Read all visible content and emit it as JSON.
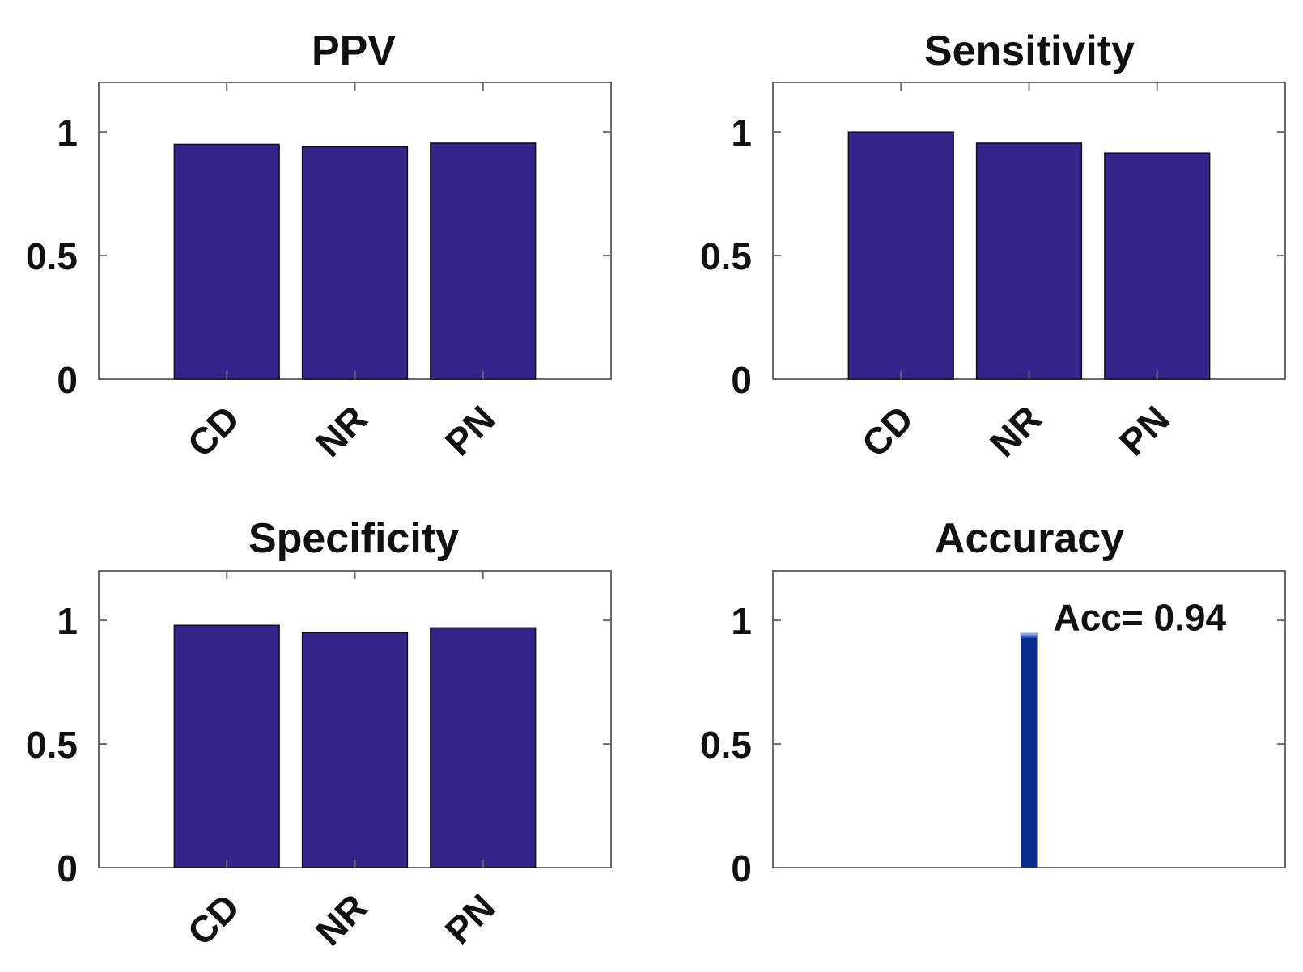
{
  "chart_data": [
    {
      "type": "bar",
      "title": "PPV",
      "categories": [
        "CD",
        "NR",
        "PN"
      ],
      "values": [
        0.95,
        0.94,
        0.955
      ],
      "ylim": [
        0,
        1.2
      ],
      "yticks": [
        "0",
        "0.5",
        "1"
      ],
      "xlabel": "",
      "ylabel": "",
      "color": "#34248a"
    },
    {
      "type": "bar",
      "title": "Sensitivity",
      "categories": [
        "CD",
        "NR",
        "PN"
      ],
      "values": [
        1.0,
        0.955,
        0.915
      ],
      "ylim": [
        0,
        1.2
      ],
      "yticks": [
        "0",
        "0.5",
        "1"
      ],
      "xlabel": "",
      "ylabel": "",
      "color": "#34248a"
    },
    {
      "type": "bar",
      "title": "Specificity",
      "categories": [
        "CD",
        "NR",
        "PN"
      ],
      "values": [
        0.98,
        0.95,
        0.97
      ],
      "ylim": [
        0,
        1.2
      ],
      "yticks": [
        "0",
        "0.5",
        "1"
      ],
      "xlabel": "",
      "ylabel": "",
      "color": "#34248a"
    },
    {
      "type": "bar",
      "title": "Accuracy",
      "categories": [
        ""
      ],
      "values": [
        0.94
      ],
      "ylim": [
        0,
        1.2
      ],
      "yticks": [
        "0",
        "0.5",
        "1"
      ],
      "annotation": "Acc= 0.94",
      "xlabel": "",
      "ylabel": "",
      "color": "#0a2d91"
    }
  ]
}
